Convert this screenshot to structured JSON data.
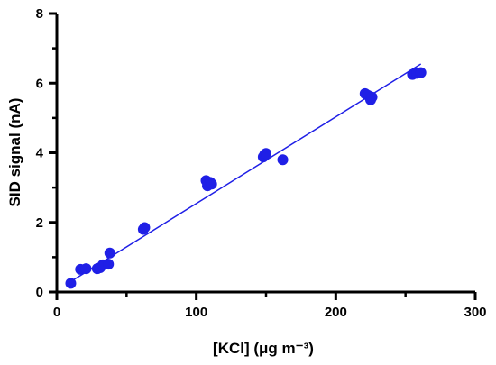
{
  "chart_data": {
    "type": "scatter",
    "title": "",
    "xlabel": "[KCl] (μg m⁻³)",
    "ylabel": "SID signal (nA)",
    "xlim": [
      0,
      300
    ],
    "ylim": [
      0,
      8
    ],
    "x_ticks": [
      0,
      100,
      200,
      300
    ],
    "x_minor_ticks": [
      50,
      150,
      250
    ],
    "y_ticks": [
      0,
      2,
      4,
      6,
      8
    ],
    "y_minor_ticks": [
      1,
      3,
      5,
      7
    ],
    "grid": false,
    "legend": "none",
    "marker_color": "#1f1fe6",
    "line_color": "#1f1fe6",
    "series": [
      {
        "points": [
          {
            "x": 10,
            "y": 0.25
          },
          {
            "x": 17,
            "y": 0.65
          },
          {
            "x": 21,
            "y": 0.67
          },
          {
            "x": 29,
            "y": 0.67
          },
          {
            "x": 31,
            "y": 0.7
          },
          {
            "x": 33,
            "y": 0.78
          },
          {
            "x": 37,
            "y": 0.8
          },
          {
            "x": 38,
            "y": 1.12
          },
          {
            "x": 62,
            "y": 1.8
          },
          {
            "x": 63,
            "y": 1.85
          },
          {
            "x": 107,
            "y": 3.2
          },
          {
            "x": 108,
            "y": 3.05
          },
          {
            "x": 110,
            "y": 3.15
          },
          {
            "x": 111,
            "y": 3.1
          },
          {
            "x": 148,
            "y": 3.88
          },
          {
            "x": 149,
            "y": 3.95
          },
          {
            "x": 150,
            "y": 3.98
          },
          {
            "x": 162,
            "y": 3.8
          },
          {
            "x": 221,
            "y": 5.7
          },
          {
            "x": 223,
            "y": 5.65
          },
          {
            "x": 225,
            "y": 5.52
          },
          {
            "x": 226,
            "y": 5.6
          },
          {
            "x": 255,
            "y": 6.25
          },
          {
            "x": 258,
            "y": 6.28
          },
          {
            "x": 261,
            "y": 6.3
          }
        ],
        "fit_line": {
          "x": [
            10,
            261
          ],
          "y": [
            0.3,
            6.55
          ]
        }
      }
    ]
  }
}
